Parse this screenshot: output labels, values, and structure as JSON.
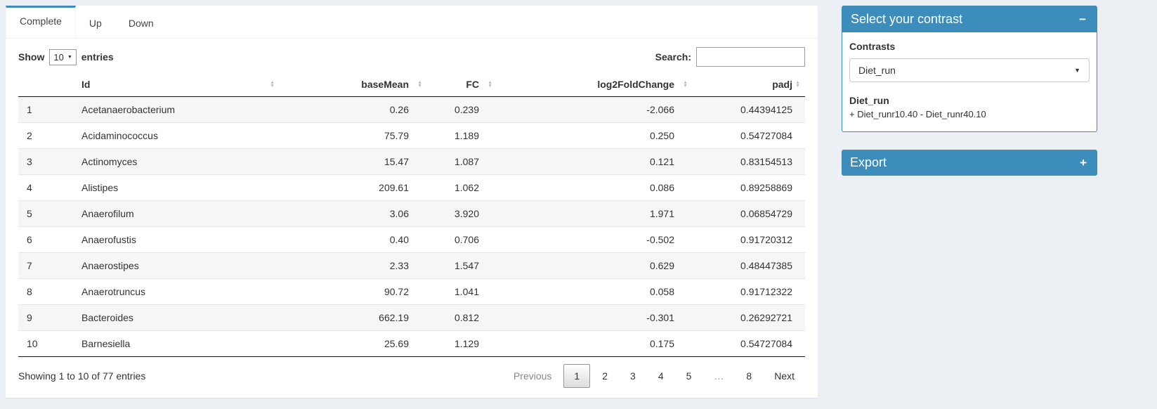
{
  "icons": {
    "sort_up": "▲",
    "sort_down": "▼",
    "select_caret": "▼",
    "dropdown_caret": "▼",
    "collapse_minus": "−",
    "collapse_plus": "+"
  },
  "colors": {
    "primary": "#3c8dbc",
    "page_background": "#ecf0f5"
  },
  "tabs": {
    "complete": "Complete",
    "up": "Up",
    "down": "Down"
  },
  "controls": {
    "show_label": "Show",
    "entries_selected": "10",
    "entries_label": "entries",
    "search_label": "Search:",
    "search_value": ""
  },
  "table": {
    "columns": {
      "id": "Id",
      "baseMean": "baseMean",
      "fc": "FC",
      "log2fc": "log2FoldChange",
      "padj": "padj"
    },
    "rows": [
      {
        "index": "1",
        "id": "Acetanaerobacterium",
        "baseMean": "0.26",
        "fc": "0.239",
        "log2fc": "-2.066",
        "padj": "0.44394125"
      },
      {
        "index": "2",
        "id": "Acidaminococcus",
        "baseMean": "75.79",
        "fc": "1.189",
        "log2fc": "0.250",
        "padj": "0.54727084"
      },
      {
        "index": "3",
        "id": "Actinomyces",
        "baseMean": "15.47",
        "fc": "1.087",
        "log2fc": "0.121",
        "padj": "0.83154513"
      },
      {
        "index": "4",
        "id": "Alistipes",
        "baseMean": "209.61",
        "fc": "1.062",
        "log2fc": "0.086",
        "padj": "0.89258869"
      },
      {
        "index": "5",
        "id": "Anaerofilum",
        "baseMean": "3.06",
        "fc": "3.920",
        "log2fc": "1.971",
        "padj": "0.06854729"
      },
      {
        "index": "6",
        "id": "Anaerofustis",
        "baseMean": "0.40",
        "fc": "0.706",
        "log2fc": "-0.502",
        "padj": "0.91720312"
      },
      {
        "index": "7",
        "id": "Anaerostipes",
        "baseMean": "2.33",
        "fc": "1.547",
        "log2fc": "0.629",
        "padj": "0.48447385"
      },
      {
        "index": "8",
        "id": "Anaerotruncus",
        "baseMean": "90.72",
        "fc": "1.041",
        "log2fc": "0.058",
        "padj": "0.91712322"
      },
      {
        "index": "9",
        "id": "Bacteroides",
        "baseMean": "662.19",
        "fc": "0.812",
        "log2fc": "-0.301",
        "padj": "0.26292721"
      },
      {
        "index": "10",
        "id": "Barnesiella",
        "baseMean": "25.69",
        "fc": "1.129",
        "log2fc": "0.175",
        "padj": "0.54727084"
      }
    ]
  },
  "footer": {
    "info": "Showing 1 to 10 of 77 entries",
    "previous": "Previous",
    "pages": [
      "1",
      "2",
      "3",
      "4",
      "5",
      "…",
      "8"
    ],
    "active_page": "1",
    "next": "Next"
  },
  "contrast_box": {
    "title": "Select your contrast",
    "contrasts_label": "Contrasts",
    "selected": "Diet_run",
    "detail_name": "Diet_run",
    "detail_formula": "+ Diet_runr10.40 - Diet_runr40.10"
  },
  "export_box": {
    "title": "Export"
  }
}
